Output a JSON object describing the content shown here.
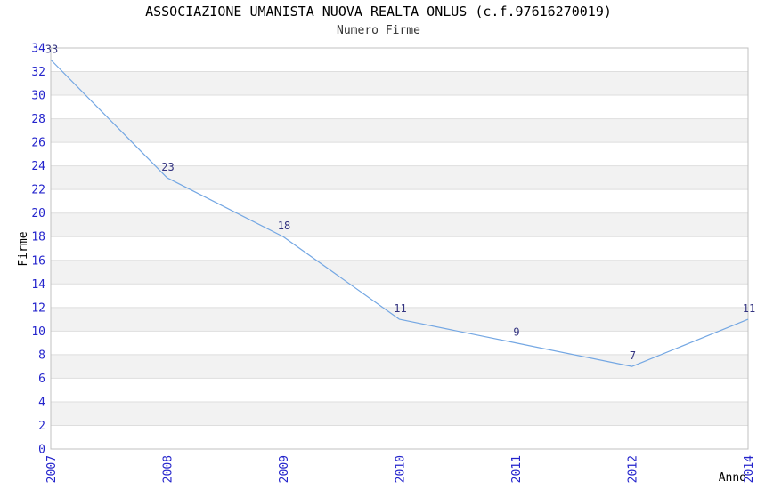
{
  "chart_data": {
    "type": "line",
    "title": "ASSOCIAZIONE UMANISTA NUOVA REALTA ONLUS (c.f.97616270019)",
    "subtitle": "Numero Firme",
    "xlabel": "Anno",
    "ylabel": "Firme",
    "x": [
      "2007",
      "2008",
      "2009",
      "2010",
      "2011",
      "2012",
      "2014"
    ],
    "values": [
      33,
      23,
      18,
      11,
      9,
      7,
      11
    ],
    "ylim": [
      0,
      34
    ],
    "y_tick_step": 2,
    "x_tick_rotation": -90,
    "legend": "none",
    "grid": {
      "horizontal_bands": true,
      "vertical": false
    },
    "colors": {
      "line": "#74a7e3",
      "tick_label": "#2424cc",
      "value_label": "#333380",
      "band": "#f2f2f2",
      "gridline": "#dedede",
      "border": "#c0c0c0",
      "title": "#000000",
      "subtitle": "#333333",
      "axis_label": "#000000",
      "background": "#ffffff"
    }
  }
}
